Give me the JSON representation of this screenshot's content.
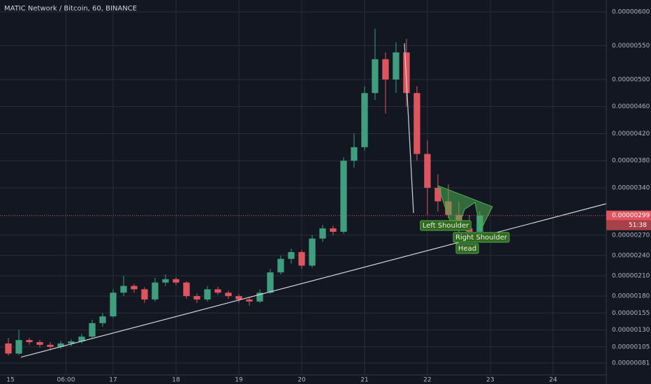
{
  "chart_data": {
    "type": "candlestick",
    "title": "MATIC Network / Bitcoin, 60, BINANCE",
    "x": [
      8,
      12,
      16,
      20,
      24,
      28,
      32,
      36,
      40,
      44,
      48,
      52,
      56,
      60,
      64,
      68,
      72,
      76,
      80,
      84,
      88,
      92,
      96,
      100,
      104,
      108,
      112,
      116,
      120,
      124,
      128,
      132,
      136,
      140,
      144,
      148,
      152,
      156,
      160,
      164,
      168,
      172,
      176,
      180,
      184,
      188
    ],
    "open": [
      1.1e-06,
      9.5e-07,
      1.15e-06,
      1.12e-06,
      1.08e-06,
      1.05e-06,
      1.1e-06,
      1.13e-06,
      1.2e-06,
      1.4e-06,
      1.5e-06,
      1.85e-06,
      1.95e-06,
      1.9e-06,
      1.75e-06,
      2e-06,
      2.05e-06,
      2e-06,
      1.8e-06,
      1.75e-06,
      1.9e-06,
      1.85e-06,
      1.8e-06,
      1.75e-06,
      1.72e-06,
      1.85e-06,
      2.15e-06,
      2.35e-06,
      2.45e-06,
      2.25e-06,
      2.65e-06,
      2.8e-06,
      2.75e-06,
      3.8e-06,
      4e-06,
      4.8e-06,
      5.3e-06,
      5e-06,
      5.4e-06,
      4.8e-06,
      3.9e-06,
      3.4e-06,
      3.2e-06,
      3e-06,
      2.8e-06,
      2.75e-06
    ],
    "high": [
      1.18e-06,
      1.3e-06,
      1.18e-06,
      1.15e-06,
      1.12e-06,
      1.14e-06,
      1.16e-06,
      1.24e-06,
      1.45e-06,
      1.55e-06,
      1.9e-06,
      2.1e-06,
      1.98e-06,
      1.93e-06,
      2.07e-06,
      2.12e-06,
      2.08e-06,
      2.02e-06,
      1.84e-06,
      1.95e-06,
      1.94e-06,
      1.88e-06,
      1.83e-06,
      1.78e-06,
      1.9e-06,
      2.2e-06,
      2.4e-06,
      2.5e-06,
      2.48e-06,
      2.7e-06,
      2.85e-06,
      2.84e-06,
      3.85e-06,
      4.2e-06,
      4.9e-06,
      5.75e-06,
      5.4e-06,
      5.55e-06,
      5.6e-06,
      4.9e-06,
      4.1e-06,
      3.6e-06,
      3.45e-06,
      3.2e-06,
      3e-06,
      3.05e-06
    ],
    "low": [
      9.2e-07,
      9.3e-07,
      1.08e-06,
      1.04e-06,
      1e-06,
      1.02e-06,
      1.06e-06,
      1.1e-06,
      1.18e-06,
      1.35e-06,
      1.48e-06,
      1.8e-06,
      1.85e-06,
      1.7e-06,
      1.72e-06,
      1.95e-06,
      1.96e-06,
      1.76e-06,
      1.7e-06,
      1.72e-06,
      1.82e-06,
      1.76e-06,
      1.7e-06,
      1.66e-06,
      1.7e-06,
      1.83e-06,
      2.12e-06,
      2.28e-06,
      2.2e-06,
      2.22e-06,
      2.6e-06,
      2.7e-06,
      2.72e-06,
      3.7e-06,
      3.95e-06,
      4.7e-06,
      4.5e-06,
      4.8e-06,
      4.6e-06,
      3.8e-06,
      3e-06,
      3.05e-06,
      2.95e-06,
      2.7e-06,
      2.65e-06,
      2.7e-06
    ],
    "close": [
      9.5e-07,
      1.15e-06,
      1.12e-06,
      1.08e-06,
      1.05e-06,
      1.1e-06,
      1.13e-06,
      1.2e-06,
      1.4e-06,
      1.5e-06,
      1.85e-06,
      1.95e-06,
      1.9e-06,
      1.75e-06,
      2e-06,
      2.05e-06,
      2e-06,
      1.8e-06,
      1.75e-06,
      1.9e-06,
      1.85e-06,
      1.8e-06,
      1.75e-06,
      1.72e-06,
      1.85e-06,
      2.15e-06,
      2.35e-06,
      2.45e-06,
      2.25e-06,
      2.65e-06,
      2.8e-06,
      2.75e-06,
      3.8e-06,
      4e-06,
      4.8e-06,
      5.3e-06,
      5e-06,
      5.4e-06,
      4.8e-06,
      3.9e-06,
      3.4e-06,
      3.2e-06,
      3e-06,
      2.8e-06,
      2.75e-06,
      2.99e-06
    ],
    "up_color": "#3e9e7e",
    "down_color": "#e0545f",
    "xlim": [
      4.8,
      236.3
    ],
    "ylim": [
      6.35e-07,
      6.175e-06
    ],
    "xticks": [
      {
        "value": 0,
        "label": "15"
      },
      {
        "value": 30,
        "label": "06:00"
      },
      {
        "value": 48,
        "label": "17"
      },
      {
        "value": 72,
        "label": "18"
      },
      {
        "value": 96,
        "label": "19"
      },
      {
        "value": 120,
        "label": "20"
      },
      {
        "value": 144,
        "label": "21"
      },
      {
        "value": 168,
        "label": "22"
      },
      {
        "value": 192,
        "label": "23"
      },
      {
        "value": 216,
        "label": "24"
      }
    ],
    "yticks": [
      {
        "value": 6e-06,
        "label": "0.00000600"
      },
      {
        "value": 5.5e-06,
        "label": "0.00000550"
      },
      {
        "value": 5e-06,
        "label": "0.00000500"
      },
      {
        "value": 4.6e-06,
        "label": "0.00000460"
      },
      {
        "value": 4.2e-06,
        "label": "0.00000420"
      },
      {
        "value": 3.8e-06,
        "label": "0.00000380"
      },
      {
        "value": 3.4e-06,
        "label": "0.00000340"
      },
      {
        "value": 2.7e-06,
        "label": "0.00000270"
      },
      {
        "value": 2.4e-06,
        "label": "0.00000240"
      },
      {
        "value": 2.1e-06,
        "label": "0.00000210"
      },
      {
        "value": 1.8e-06,
        "label": "0.00000180"
      },
      {
        "value": 1.55e-06,
        "label": "0.00000155"
      },
      {
        "value": 1.3e-06,
        "label": "0.00000130"
      },
      {
        "value": 1.05e-06,
        "label": "0.00000105"
      },
      {
        "value": 8.1e-07,
        "label": "0.00000081"
      }
    ],
    "grid": true,
    "last_price": {
      "value": 2.99e-06,
      "label": "0.00000299"
    },
    "countdown": "51:38",
    "trendline": {
      "x": [
        12.8,
        236.3
      ],
      "y": [
        8.97e-07,
        3.165e-06
      ]
    },
    "annotations": [
      "Left Shoulder",
      "Right Shoulder",
      "Head"
    ]
  }
}
